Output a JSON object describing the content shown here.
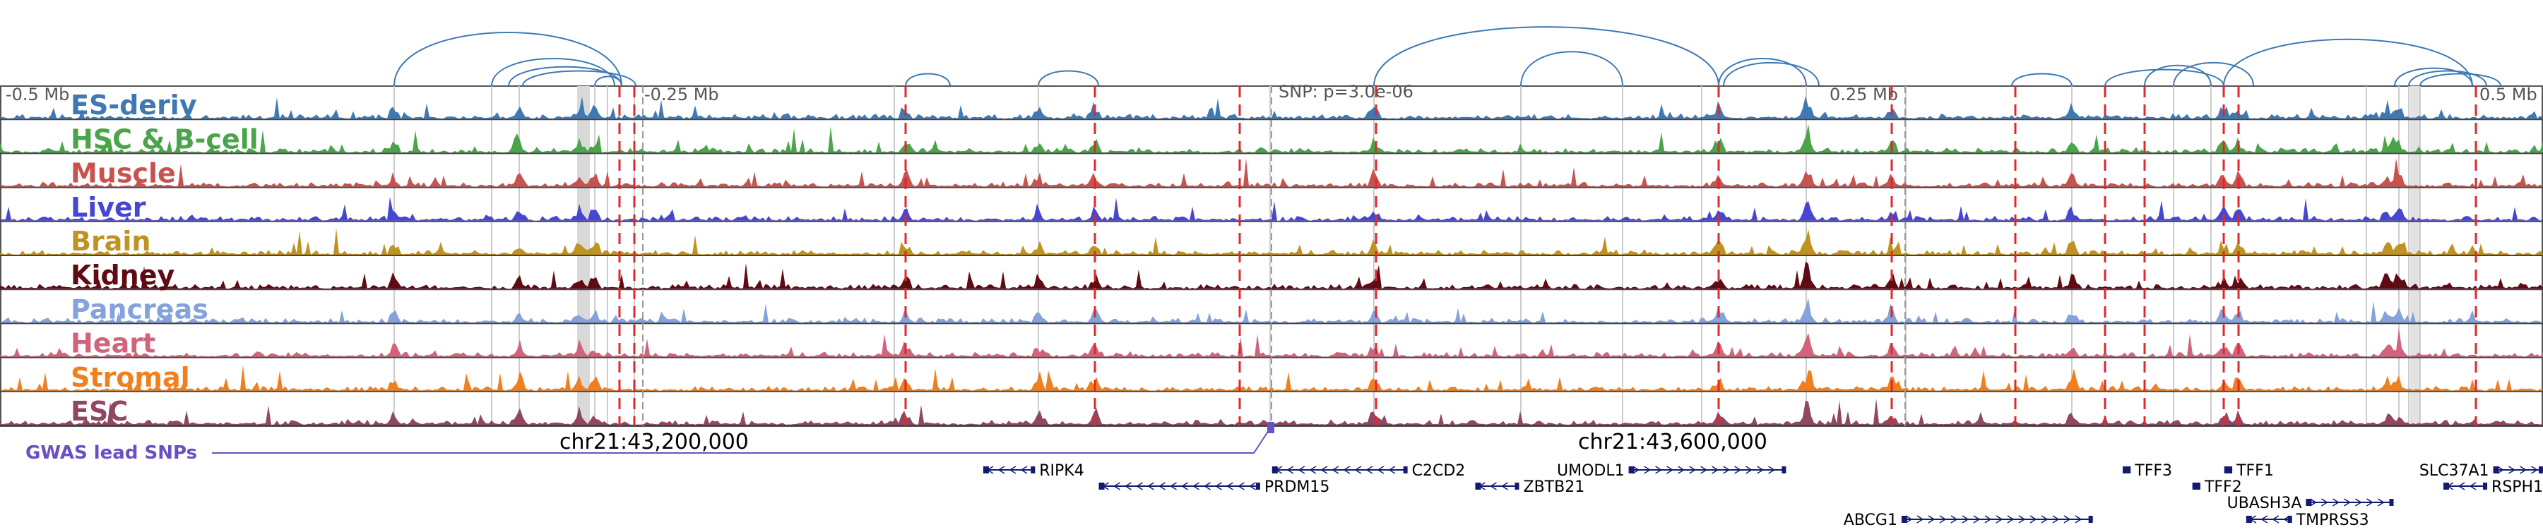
{
  "figure": {
    "tracks": [
      {
        "name": "ES-deriv",
        "color": "#3f79b4"
      },
      {
        "name": "HSC & B-cell",
        "color": "#4aa44a"
      },
      {
        "name": "Muscle",
        "color": "#c8524e"
      },
      {
        "name": "Liver",
        "color": "#4646d2"
      },
      {
        "name": "Brain",
        "color": "#c09222"
      },
      {
        "name": "Kidney",
        "color": "#5e0b14"
      },
      {
        "name": "Pancreas",
        "color": "#84a2dc"
      },
      {
        "name": "Heart",
        "color": "#d1637b"
      },
      {
        "name": "Stromal",
        "color": "#f07f1d"
      },
      {
        "name": "ESC",
        "color": "#8f4763"
      }
    ],
    "coord_labels": {
      "left": "-0.5 Mb",
      "left_mid": "-0.25 Mb",
      "snp": "SNP: p=3.0e-06",
      "right_mid": "0.25 Mb",
      "right": "0.5 Mb"
    },
    "chr_labels": {
      "first": "chr21:43,200,000",
      "second": "chr21:43,600,000"
    },
    "gwas_label": "GWAS lead SNPs",
    "gwas_color": "#6a4fc5",
    "snp_line_color": "#e0282b",
    "gene_color": "#121b6e",
    "arc_color": "#3f79b4",
    "genes": [
      {
        "name": "RIPK4",
        "start": 0.217,
        "end": 0.243,
        "row": 0,
        "strand": "-"
      },
      {
        "name": "PRDM15",
        "start": 0.275,
        "end": 0.356,
        "row": 1,
        "strand": "-"
      },
      {
        "name": "C2CD2",
        "start": 0.362,
        "end": 0.43,
        "row": 0,
        "strand": "-"
      },
      {
        "name": "ZBTB21",
        "start": 0.464,
        "end": 0.486,
        "row": 1,
        "strand": "-"
      },
      {
        "name": "UMODL1",
        "start": 0.541,
        "end": 0.62,
        "row": 0,
        "strand": "+"
      },
      {
        "name": "ABCG1",
        "start": 0.678,
        "end": 0.774,
        "row": 3,
        "strand": "+"
      },
      {
        "name": "TFF3",
        "start": 0.789,
        "end": 0.793,
        "row": 0,
        "strand": "-"
      },
      {
        "name": "TFF2",
        "start": 0.824,
        "end": 0.828,
        "row": 1,
        "strand": "-"
      },
      {
        "name": "TFF1",
        "start": 0.84,
        "end": 0.844,
        "row": 0,
        "strand": "-"
      },
      {
        "name": "UBASH3A",
        "start": 0.881,
        "end": 0.925,
        "row": 2,
        "strand": "+"
      },
      {
        "name": "TMPRSS3",
        "start": 0.851,
        "end": 0.874,
        "row": 3,
        "strand": "-"
      },
      {
        "name": "SLC37A1",
        "start": 0.975,
        "end": 1.0,
        "row": 0,
        "strand": "+"
      },
      {
        "name": "RSPH1",
        "start": 0.95,
        "end": 0.972,
        "row": 1,
        "strand": "-"
      }
    ]
  }
}
